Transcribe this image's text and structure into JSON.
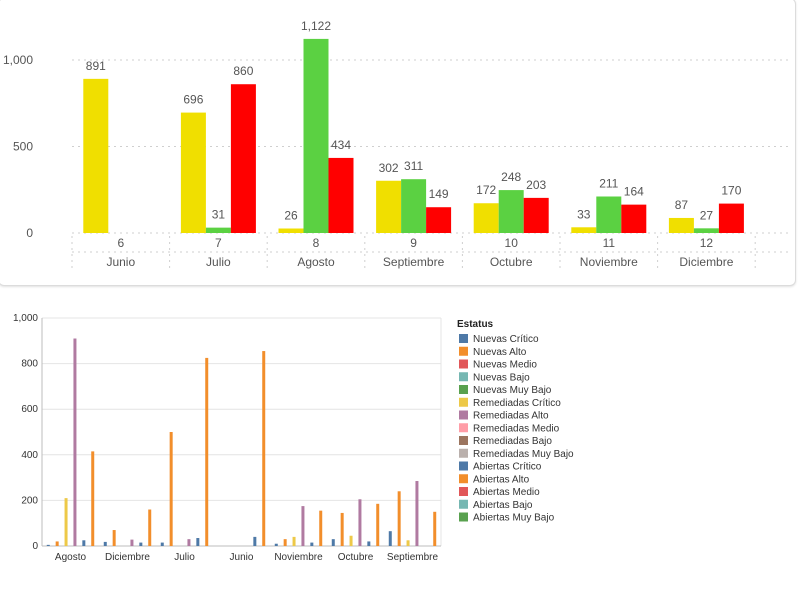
{
  "chart_data": [
    {
      "type": "bar",
      "categories": [
        "6",
        "7",
        "8",
        "9",
        "10",
        "11",
        "12"
      ],
      "month_labels": [
        "Junio",
        "Julio",
        "Agosto",
        "Septiembre",
        "Octubre",
        "Noviembre",
        "Diciembre"
      ],
      "series": [
        {
          "color": "#f0df00",
          "values": [
            891,
            696,
            26,
            302,
            172,
            33,
            87
          ]
        },
        {
          "color": "#5bd142",
          "values": [
            null,
            31,
            1122,
            311,
            248,
            211,
            27
          ]
        },
        {
          "color": "#ff0000",
          "values": [
            null,
            860,
            434,
            149,
            203,
            164,
            170
          ]
        }
      ],
      "ylim": [
        0,
        1100
      ],
      "y_ticks": [
        0,
        500,
        1000
      ],
      "value_labels": {
        "format": "thousands-comma"
      },
      "grid": true
    },
    {
      "type": "bar",
      "categories": [
        "Agosto",
        "Diciembre",
        "Julio",
        "Junio",
        "Noviembre",
        "Octubre",
        "Septiembre"
      ],
      "ylim": [
        0,
        1000
      ],
      "y_tick_labels": [
        "0",
        "200",
        "400",
        "600",
        "800",
        "1,000"
      ],
      "y_ticks": [
        0,
        200,
        400,
        600,
        800,
        1000
      ],
      "legend": {
        "title": "Estatus",
        "position": "right",
        "entries": [
          {
            "name": "Nuevas Crítico",
            "color": "#4e79a7"
          },
          {
            "name": "Nuevas Alto",
            "color": "#f28e2b"
          },
          {
            "name": "Nuevas Medio",
            "color": "#e15759"
          },
          {
            "name": "Nuevas Bajo",
            "color": "#76b7b2"
          },
          {
            "name": "Nuevas Muy Bajo",
            "color": "#59a14f"
          },
          {
            "name": "Remediadas Crítico",
            "color": "#edc948"
          },
          {
            "name": "Remediadas Alto",
            "color": "#b07aa1"
          },
          {
            "name": "Remediadas Medio",
            "color": "#ff9da7"
          },
          {
            "name": "Remediadas Bajo",
            "color": "#9c755f"
          },
          {
            "name": "Remediadas Muy Bajo",
            "color": "#bab0ac"
          },
          {
            "name": "Abiertas Crítico",
            "color": "#4e79a7"
          },
          {
            "name": "Abiertas Alto",
            "color": "#f28e2b"
          },
          {
            "name": "Abiertas Medio",
            "color": "#e15759"
          },
          {
            "name": "Abiertas Bajo",
            "color": "#76b7b2"
          },
          {
            "name": "Abiertas Muy Bajo",
            "color": "#59a14f"
          }
        ]
      },
      "series": [
        {
          "legend_index": 0,
          "values": [
            5,
            18,
            15,
            null,
            10,
            30,
            65
          ]
        },
        {
          "legend_index": 1,
          "values": [
            20,
            70,
            500,
            null,
            30,
            145,
            240
          ]
        },
        {
          "legend_index": 5,
          "values": [
            210,
            null,
            null,
            null,
            40,
            45,
            25
          ]
        },
        {
          "legend_index": 6,
          "values": [
            910,
            28,
            30,
            null,
            175,
            205,
            285
          ]
        },
        {
          "legend_index": 10,
          "values": [
            25,
            15,
            35,
            40,
            15,
            20,
            null
          ]
        },
        {
          "legend_index": 11,
          "values": [
            415,
            160,
            825,
            855,
            155,
            185,
            150
          ]
        }
      ],
      "grid": true
    }
  ]
}
